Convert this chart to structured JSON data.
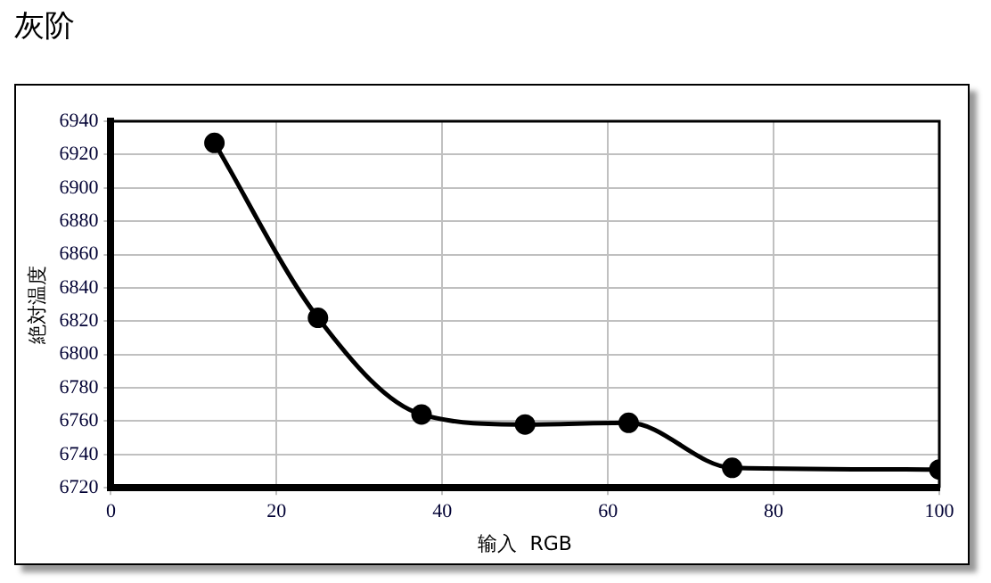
{
  "chart_data": {
    "type": "line",
    "title": "灰阶",
    "xlabel": "输入  RGB",
    "ylabel": "絶対温度",
    "x": [
      12.5,
      25,
      37.5,
      50,
      62.5,
      75,
      87.5,
      100
    ],
    "series": [
      {
        "color": "#000000",
        "values": [
          6927,
          6822,
          6764,
          6758,
          6759,
          6732,
          null,
          6731
        ]
      }
    ],
    "xlim": [
      0,
      100
    ],
    "xticks": [
      0,
      20,
      40,
      60,
      80,
      100
    ],
    "ylim": [
      6720,
      6940
    ],
    "yticks": [
      6720,
      6740,
      6760,
      6780,
      6800,
      6820,
      6840,
      6860,
      6880,
      6900,
      6920,
      6940
    ],
    "grid": true,
    "legend": false,
    "marker": "circle",
    "line_style": "solid"
  }
}
